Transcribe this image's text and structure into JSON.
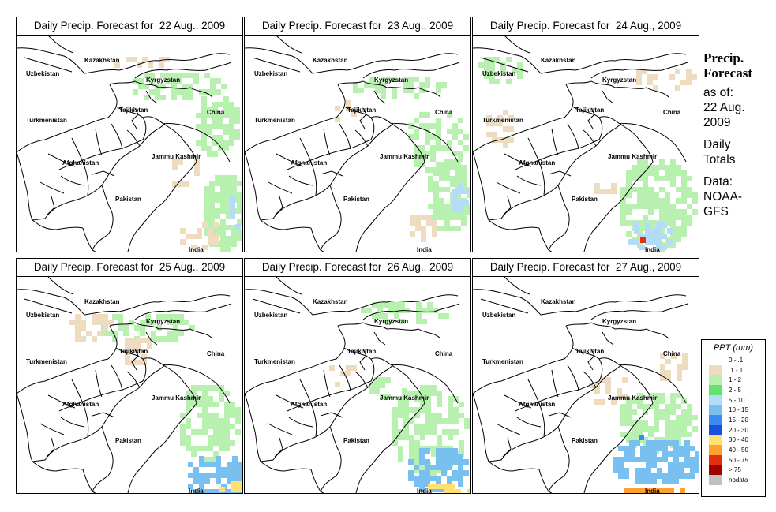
{
  "panels": [
    {
      "title": "Daily Precip. Forecast for  22 Aug., 2009",
      "pattern": "p1"
    },
    {
      "title": "Daily Precip. Forecast for  23 Aug., 2009",
      "pattern": "p2"
    },
    {
      "title": "Daily Precip. Forecast for  24 Aug., 2009",
      "pattern": "p3"
    },
    {
      "title": "Daily Precip. Forecast for  25 Aug., 2009",
      "pattern": "p4"
    },
    {
      "title": "Daily Precip. Forecast for  26 Aug., 2009",
      "pattern": "p5"
    },
    {
      "title": "Daily Precip. Forecast for  27 Aug., 2009",
      "pattern": "p6"
    }
  ],
  "map_labels": {
    "uzbekistan": "Uzbekistan",
    "kazakhstan": "Kazakhstan",
    "kyrgyzstan": "Kyrgyzstan",
    "tajikistan": "Tajikistan",
    "turkmenistan": "Turkmenistan",
    "china": "China",
    "afghanistan": "Afghanistan",
    "jammu_kashmir": "Jammu Kashmir",
    "pakistan": "Pakistan",
    "india": "India"
  },
  "side_panel": {
    "title_line1": "Precip.",
    "title_line2": "Forecast",
    "asof_line1": "as of:",
    "asof_line2": "22 Aug.",
    "asof_line3": "2009",
    "totals_line1": "Daily",
    "totals_line2": "Totals",
    "data_line1": "Data:",
    "data_line2": "NOAA-",
    "data_line3": "GFS"
  },
  "legend": {
    "title": "PPT (mm)",
    "items": [
      {
        "label": "0 - .1",
        "color": "#ffffff"
      },
      {
        "label": ".1 - 1",
        "color": "#eedcc0"
      },
      {
        "label": "1 - 2",
        "color": "#b8f0b0"
      },
      {
        "label": "2 - 5",
        "color": "#66e070"
      },
      {
        "label": "5 - 10",
        "color": "#b4dcf8"
      },
      {
        "label": "10 - 15",
        "color": "#78c0f0"
      },
      {
        "label": "15 - 20",
        "color": "#3c8cf0"
      },
      {
        "label": "20 - 30",
        "color": "#1a50e0"
      },
      {
        "label": "30 - 40",
        "color": "#ffe070"
      },
      {
        "label": "40 - 50",
        "color": "#ffa030"
      },
      {
        "label": "50 - 75",
        "color": "#e03010"
      },
      {
        "label": "> 75",
        "color": "#a00000"
      },
      {
        "label": "nodata",
        "color": "#c0c0c0"
      }
    ]
  }
}
